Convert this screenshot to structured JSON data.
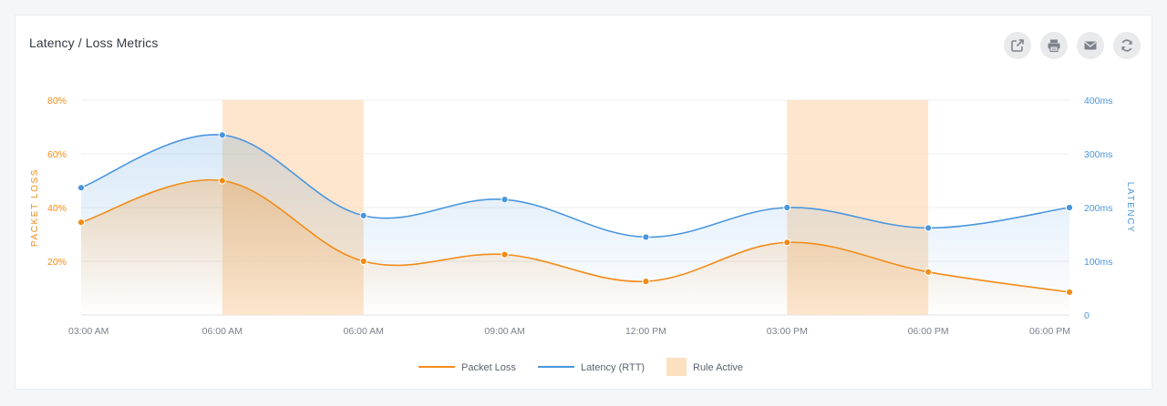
{
  "card": {
    "title": "Latency / Loss Metrics"
  },
  "toolbar": [
    {
      "name": "external-link-button",
      "icon": "external-link-icon"
    },
    {
      "name": "print-button",
      "icon": "print-icon"
    },
    {
      "name": "email-button",
      "icon": "mail-icon"
    },
    {
      "name": "refresh-button",
      "icon": "refresh-icon"
    }
  ],
  "chart_data": {
    "type": "line",
    "title": "Latency / Loss Metrics",
    "categories": [
      "03:00 AM",
      "06:00 AM",
      "06:00 AM",
      "09:00 AM",
      "12:00 PM",
      "03:00 PM",
      "06:00 PM",
      "06:00 PM"
    ],
    "series": [
      {
        "name": "Packet Loss",
        "axis": "left",
        "color": "#f28c18",
        "values": [
          34.5,
          50,
          20,
          22.5,
          12.5,
          27,
          16,
          8.5
        ]
      },
      {
        "name": "Latency (RTT)",
        "axis": "right",
        "color": "#4a96de",
        "values": [
          237,
          335,
          185,
          215,
          145,
          200,
          162,
          200
        ]
      }
    ],
    "rule_active": {
      "name": "Rule Active",
      "color": "#fde0c0",
      "ranges": [
        [
          1,
          2
        ],
        [
          5,
          6
        ]
      ]
    },
    "y_left": {
      "label": "PACKET LOSS",
      "range": [
        0,
        80
      ],
      "ticks": [
        20,
        40,
        60,
        80
      ],
      "tick_labels": [
        "20%",
        "40%",
        "60%",
        "80%"
      ],
      "color": "#f28c18"
    },
    "y_right": {
      "label": "LATENCY",
      "range": [
        0,
        400
      ],
      "ticks": [
        0,
        100,
        200,
        300,
        400
      ],
      "tick_labels": [
        "0",
        "100ms",
        "200ms",
        "300ms",
        "400ms"
      ],
      "color": "#4a96de"
    },
    "grid": true,
    "legend": "bottom-center"
  }
}
